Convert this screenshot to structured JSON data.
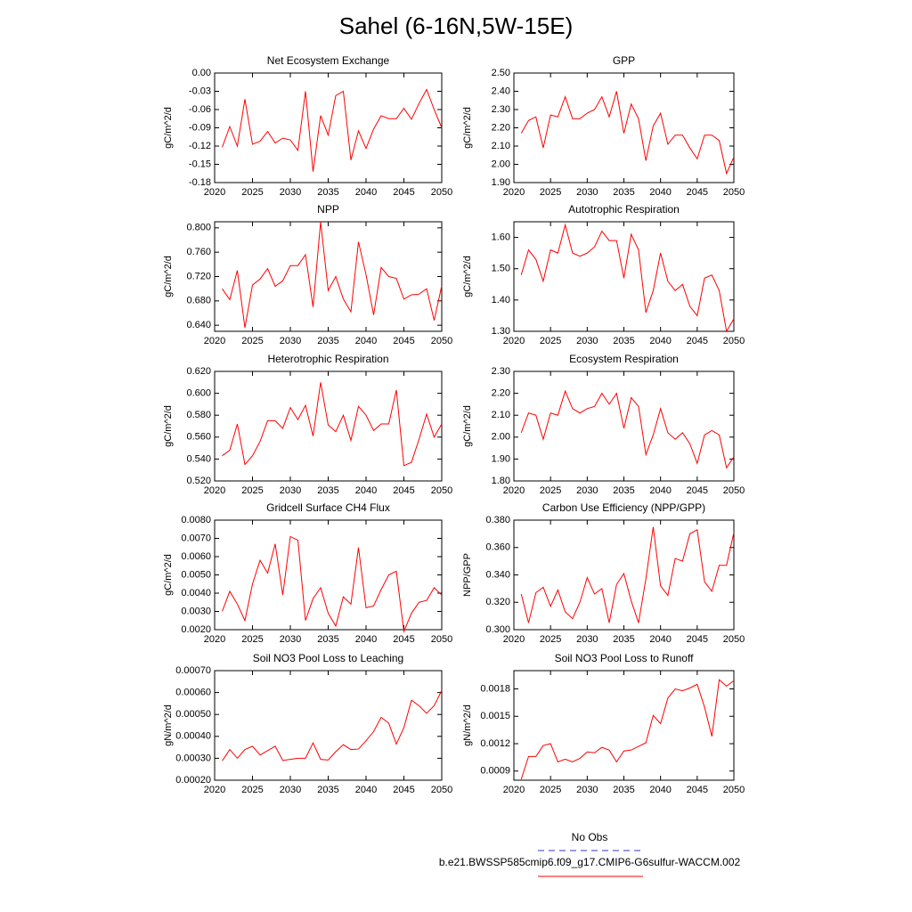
{
  "title": "Sahel (6-16N,5W-15E)",
  "legend": [
    {
      "name": "No Obs",
      "color": "#3333cc",
      "dash": true
    },
    {
      "name": "b.e21.BWSSP585cmip6.f09_g17.CMIP6-G6sulfur-WACCM.002",
      "color": "#ff0000",
      "dash": false
    }
  ],
  "chart_data": [
    {
      "type": "line",
      "title": "Net Ecosystem Exchange",
      "ylabel": "gC/m^2/d",
      "color": "#ff0000",
      "x": [
        2021,
        2022,
        2023,
        2024,
        2025,
        2026,
        2027,
        2028,
        2029,
        2030,
        2031,
        2032,
        2033,
        2034,
        2035,
        2036,
        2037,
        2038,
        2039,
        2040,
        2041,
        2042,
        2043,
        2044,
        2045,
        2046,
        2047,
        2048,
        2049,
        2050
      ],
      "values": [
        -0.122,
        -0.088,
        -0.12,
        -0.043,
        -0.117,
        -0.112,
        -0.096,
        -0.115,
        -0.107,
        -0.11,
        -0.127,
        -0.03,
        -0.162,
        -0.07,
        -0.102,
        -0.037,
        -0.03,
        -0.143,
        -0.095,
        -0.124,
        -0.092,
        -0.07,
        -0.075,
        -0.075,
        -0.058,
        -0.076,
        -0.05,
        -0.027,
        -0.06,
        -0.09
      ],
      "xlim": [
        2020,
        2050
      ],
      "xticks": [
        2020,
        2025,
        2030,
        2035,
        2040,
        2045,
        2050
      ],
      "ylim": [
        -0.18,
        0
      ],
      "yticks": [
        -0.18,
        -0.15,
        -0.12,
        -0.09,
        -0.06,
        -0.03,
        {
          "value": 0,
          "label": "0.00"
        }
      ]
    },
    {
      "type": "line",
      "title": "GPP",
      "ylabel": "gC/m^2/d",
      "color": "#ff0000",
      "x": [
        2021,
        2022,
        2023,
        2024,
        2025,
        2026,
        2027,
        2028,
        2029,
        2030,
        2031,
        2032,
        2033,
        2034,
        2035,
        2036,
        2037,
        2038,
        2039,
        2040,
        2041,
        2042,
        2043,
        2044,
        2045,
        2046,
        2047,
        2048,
        2049,
        2050
      ],
      "values": [
        2.17,
        2.24,
        2.26,
        2.09,
        2.27,
        2.26,
        2.37,
        2.25,
        2.25,
        2.28,
        2.3,
        2.37,
        2.26,
        2.4,
        2.17,
        2.33,
        2.25,
        2.02,
        2.21,
        2.28,
        2.11,
        2.16,
        2.16,
        2.09,
        2.03,
        2.16,
        2.16,
        2.13,
        1.95,
        2.04
      ],
      "xlim": [
        2020,
        2050
      ],
      "xticks": [
        2020,
        2025,
        2030,
        2035,
        2040,
        2045,
        2050
      ],
      "ylim": [
        1.9,
        2.5
      ],
      "yticks": [
        {
          "value": 1.9,
          "label": "1.90"
        },
        {
          "value": 2.0,
          "label": "2.00"
        },
        {
          "value": 2.1,
          "label": "2.10"
        },
        {
          "value": 2.2,
          "label": "2.20"
        },
        {
          "value": 2.3,
          "label": "2.30"
        },
        {
          "value": 2.4,
          "label": "2.40"
        },
        {
          "value": 2.5,
          "label": "2.50"
        }
      ]
    },
    {
      "type": "line",
      "title": "NPP",
      "ylabel": "gC/m^2/d",
      "color": "#ff0000",
      "x": [
        2021,
        2022,
        2023,
        2024,
        2025,
        2026,
        2027,
        2028,
        2029,
        2030,
        2031,
        2032,
        2033,
        2034,
        2035,
        2036,
        2037,
        2038,
        2039,
        2040,
        2041,
        2042,
        2043,
        2044,
        2045,
        2046,
        2047,
        2048,
        2049,
        2050
      ],
      "values": [
        0.7,
        0.682,
        0.73,
        0.636,
        0.706,
        0.716,
        0.733,
        0.704,
        0.713,
        0.738,
        0.738,
        0.756,
        0.67,
        0.81,
        0.697,
        0.72,
        0.683,
        0.662,
        0.777,
        0.723,
        0.657,
        0.735,
        0.72,
        0.717,
        0.683,
        0.69,
        0.691,
        0.7,
        0.648,
        0.705
      ],
      "xlim": [
        2020,
        2050
      ],
      "xticks": [
        2020,
        2025,
        2030,
        2035,
        2040,
        2045,
        2050
      ],
      "ylim": [
        0.63,
        0.81
      ],
      "yticks": [
        {
          "value": 0.64,
          "label": "0.640"
        },
        {
          "value": 0.68,
          "label": "0.680"
        },
        {
          "value": 0.72,
          "label": "0.720"
        },
        {
          "value": 0.76,
          "label": "0.760"
        },
        {
          "value": 0.8,
          "label": "0.800"
        }
      ]
    },
    {
      "type": "line",
      "title": "Autotrophic Respiration",
      "ylabel": "gC/m^2/d",
      "color": "#ff0000",
      "x": [
        2021,
        2022,
        2023,
        2024,
        2025,
        2026,
        2027,
        2028,
        2029,
        2030,
        2031,
        2032,
        2033,
        2034,
        2035,
        2036,
        2037,
        2038,
        2039,
        2040,
        2041,
        2042,
        2043,
        2044,
        2045,
        2046,
        2047,
        2048,
        2049,
        2050
      ],
      "values": [
        1.48,
        1.56,
        1.53,
        1.46,
        1.56,
        1.55,
        1.64,
        1.55,
        1.54,
        1.55,
        1.57,
        1.62,
        1.59,
        1.59,
        1.47,
        1.61,
        1.56,
        1.36,
        1.43,
        1.55,
        1.46,
        1.43,
        1.45,
        1.38,
        1.35,
        1.47,
        1.48,
        1.43,
        1.3,
        1.34
      ],
      "xlim": [
        2020,
        2050
      ],
      "xticks": [
        2020,
        2025,
        2030,
        2035,
        2040,
        2045,
        2050
      ],
      "ylim": [
        1.3,
        1.65
      ],
      "yticks": [
        {
          "value": 1.3,
          "label": "1.30"
        },
        {
          "value": 1.4,
          "label": "1.40"
        },
        {
          "value": 1.5,
          "label": "1.50"
        },
        {
          "value": 1.6,
          "label": "1.60"
        }
      ]
    },
    {
      "type": "line",
      "title": "Heterotrophic Respiration",
      "ylabel": "gC/m^2/d",
      "color": "#ff0000",
      "x": [
        2021,
        2022,
        2023,
        2024,
        2025,
        2026,
        2027,
        2028,
        2029,
        2030,
        2031,
        2032,
        2033,
        2034,
        2035,
        2036,
        2037,
        2038,
        2039,
        2040,
        2041,
        2042,
        2043,
        2044,
        2045,
        2046,
        2047,
        2048,
        2049,
        2050
      ],
      "values": [
        0.543,
        0.548,
        0.572,
        0.535,
        0.543,
        0.556,
        0.575,
        0.575,
        0.568,
        0.587,
        0.576,
        0.589,
        0.561,
        0.61,
        0.571,
        0.565,
        0.58,
        0.557,
        0.588,
        0.58,
        0.566,
        0.572,
        0.572,
        0.603,
        0.534,
        0.537,
        0.558,
        0.581,
        0.56,
        0.572
      ],
      "xlim": [
        2020,
        2050
      ],
      "xticks": [
        2020,
        2025,
        2030,
        2035,
        2040,
        2045,
        2050
      ],
      "ylim": [
        0.52,
        0.62
      ],
      "yticks": [
        {
          "value": 0.52,
          "label": "0.520"
        },
        {
          "value": 0.54,
          "label": "0.540"
        },
        {
          "value": 0.56,
          "label": "0.560"
        },
        {
          "value": 0.58,
          "label": "0.580"
        },
        {
          "value": 0.6,
          "label": "0.600"
        },
        {
          "value": 0.62,
          "label": "0.620"
        }
      ]
    },
    {
      "type": "line",
      "title": "Ecosystem Respiration",
      "ylabel": "gC/m^2/d",
      "color": "#ff0000",
      "x": [
        2021,
        2022,
        2023,
        2024,
        2025,
        2026,
        2027,
        2028,
        2029,
        2030,
        2031,
        2032,
        2033,
        2034,
        2035,
        2036,
        2037,
        2038,
        2039,
        2040,
        2041,
        2042,
        2043,
        2044,
        2045,
        2046,
        2047,
        2048,
        2049,
        2050
      ],
      "values": [
        2.02,
        2.11,
        2.1,
        1.99,
        2.11,
        2.1,
        2.21,
        2.13,
        2.11,
        2.13,
        2.14,
        2.2,
        2.15,
        2.2,
        2.04,
        2.18,
        2.14,
        1.92,
        2.01,
        2.13,
        2.02,
        1.99,
        2.02,
        1.97,
        1.88,
        2.01,
        2.03,
        2.01,
        1.86,
        1.91
      ],
      "xlim": [
        2020,
        2050
      ],
      "xticks": [
        2020,
        2025,
        2030,
        2035,
        2040,
        2045,
        2050
      ],
      "ylim": [
        1.8,
        2.3
      ],
      "yticks": [
        {
          "value": 1.8,
          "label": "1.80"
        },
        {
          "value": 1.9,
          "label": "1.90"
        },
        {
          "value": 2.0,
          "label": "2.00"
        },
        {
          "value": 2.1,
          "label": "2.10"
        },
        {
          "value": 2.2,
          "label": "2.20"
        },
        {
          "value": 2.3,
          "label": "2.30"
        }
      ]
    },
    {
      "type": "line",
      "title": "Gridcell Surface CH4 Flux",
      "ylabel": "gC/m^2/d",
      "color": "#ff0000",
      "x": [
        2021,
        2022,
        2023,
        2024,
        2025,
        2026,
        2027,
        2028,
        2029,
        2030,
        2031,
        2032,
        2033,
        2034,
        2035,
        2036,
        2037,
        2038,
        2039,
        2040,
        2041,
        2042,
        2043,
        2044,
        2045,
        2046,
        2047,
        2048,
        2049,
        2050
      ],
      "values": [
        0.003,
        0.0041,
        0.0034,
        0.0025,
        0.0045,
        0.0058,
        0.0051,
        0.0067,
        0.0039,
        0.0071,
        0.0069,
        0.0025,
        0.0037,
        0.0043,
        0.0029,
        0.0022,
        0.0038,
        0.0034,
        0.0065,
        0.0032,
        0.0033,
        0.0042,
        0.005,
        0.0052,
        0.0019,
        0.0029,
        0.0035,
        0.0036,
        0.0043,
        0.0039
      ],
      "xlim": [
        2020,
        2050
      ],
      "xticks": [
        2020,
        2025,
        2030,
        2035,
        2040,
        2045,
        2050
      ],
      "ylim": [
        0.002,
        0.008
      ],
      "yticks": [
        {
          "value": 0.002,
          "label": "0.0020"
        },
        {
          "value": 0.003,
          "label": "0.0030"
        },
        {
          "value": 0.004,
          "label": "0.0040"
        },
        {
          "value": 0.005,
          "label": "0.0050"
        },
        {
          "value": 0.006,
          "label": "0.0060"
        },
        {
          "value": 0.007,
          "label": "0.0070"
        },
        {
          "value": 0.008,
          "label": "0.0080"
        }
      ]
    },
    {
      "type": "line",
      "title": "Carbon Use Efficiency (NPP/GPP)",
      "ylabel": "NPP/GPP",
      "color": "#ff0000",
      "x": [
        2021,
        2022,
        2023,
        2024,
        2025,
        2026,
        2027,
        2028,
        2029,
        2030,
        2031,
        2032,
        2033,
        2034,
        2035,
        2036,
        2037,
        2038,
        2039,
        2040,
        2041,
        2042,
        2043,
        2044,
        2045,
        2046,
        2047,
        2048,
        2049,
        2050
      ],
      "values": [
        0.326,
        0.305,
        0.327,
        0.331,
        0.317,
        0.329,
        0.313,
        0.308,
        0.32,
        0.338,
        0.326,
        0.33,
        0.305,
        0.333,
        0.341,
        0.321,
        0.305,
        0.337,
        0.375,
        0.332,
        0.325,
        0.352,
        0.35,
        0.37,
        0.373,
        0.335,
        0.328,
        0.347,
        0.347,
        0.371
      ],
      "xlim": [
        2020,
        2050
      ],
      "xticks": [
        2020,
        2025,
        2030,
        2035,
        2040,
        2045,
        2050
      ],
      "ylim": [
        0.3,
        0.38
      ],
      "yticks": [
        {
          "value": 0.3,
          "label": "0.300"
        },
        {
          "value": 0.32,
          "label": "0.320"
        },
        {
          "value": 0.34,
          "label": "0.340"
        },
        {
          "value": 0.36,
          "label": "0.360"
        },
        {
          "value": 0.38,
          "label": "0.380"
        }
      ]
    },
    {
      "type": "line",
      "title": "Soil NO3 Pool Loss to Leaching",
      "ylabel": "gN/m^2/d",
      "color": "#ff0000",
      "x": [
        2021,
        2022,
        2023,
        2024,
        2025,
        2026,
        2027,
        2028,
        2029,
        2030,
        2031,
        2032,
        2033,
        2034,
        2035,
        2036,
        2037,
        2038,
        2039,
        2040,
        2041,
        2042,
        2043,
        2044,
        2045,
        2046,
        2047,
        2048,
        2049,
        2050
      ],
      "values": [
        0.000288,
        0.00034,
        0.0003,
        0.00034,
        0.000355,
        0.000315,
        0.000335,
        0.000355,
        0.00029,
        0.000295,
        0.0003,
        0.0003,
        0.00037,
        0.000295,
        0.000292,
        0.00033,
        0.000362,
        0.00034,
        0.000342,
        0.00038,
        0.000422,
        0.000487,
        0.00046,
        0.000365,
        0.00044,
        0.000565,
        0.00054,
        0.000505,
        0.00054,
        0.00061
      ],
      "xlim": [
        2020,
        2050
      ],
      "xticks": [
        2020,
        2025,
        2030,
        2035,
        2040,
        2045,
        2050
      ],
      "ylim": [
        0.0002,
        0.0007
      ],
      "yticks": [
        {
          "value": 0.0002,
          "label": "0.00020"
        },
        {
          "value": 0.0003,
          "label": "0.00030"
        },
        {
          "value": 0.0004,
          "label": "0.00040"
        },
        {
          "value": 0.0005,
          "label": "0.00050"
        },
        {
          "value": 0.0006,
          "label": "0.00060"
        },
        {
          "value": 0.0007,
          "label": "0.00070"
        }
      ]
    },
    {
      "type": "line",
      "title": "Soil NO3 Pool Loss to Runoff",
      "ylabel": "gN/m^2/d",
      "color": "#ff0000",
      "x": [
        2021,
        2022,
        2023,
        2024,
        2025,
        2026,
        2027,
        2028,
        2029,
        2030,
        2031,
        2032,
        2033,
        2034,
        2035,
        2036,
        2037,
        2038,
        2039,
        2040,
        2041,
        2042,
        2043,
        2044,
        2045,
        2046,
        2047,
        2048,
        2049,
        2050
      ],
      "values": [
        0.00081,
        0.00106,
        0.00106,
        0.00118,
        0.0012,
        0.001,
        0.00103,
        0.001,
        0.00104,
        0.00111,
        0.0011,
        0.00116,
        0.00113,
        0.001,
        0.00112,
        0.00113,
        0.00117,
        0.00121,
        0.00151,
        0.00142,
        0.0017,
        0.0018,
        0.00178,
        0.00181,
        0.00185,
        0.0016,
        0.00128,
        0.0019,
        0.00183,
        0.00189
      ],
      "xlim": [
        2020,
        2050
      ],
      "xticks": [
        2020,
        2025,
        2030,
        2035,
        2040,
        2045,
        2050
      ],
      "ylim": [
        0.0008,
        0.002
      ],
      "yticks": [
        {
          "value": 0.0009,
          "label": "0.0009"
        },
        {
          "value": 0.0012,
          "label": "0.0012"
        },
        {
          "value": 0.0015,
          "label": "0.0015"
        },
        {
          "value": 0.0018,
          "label": "0.0018"
        }
      ]
    }
  ]
}
